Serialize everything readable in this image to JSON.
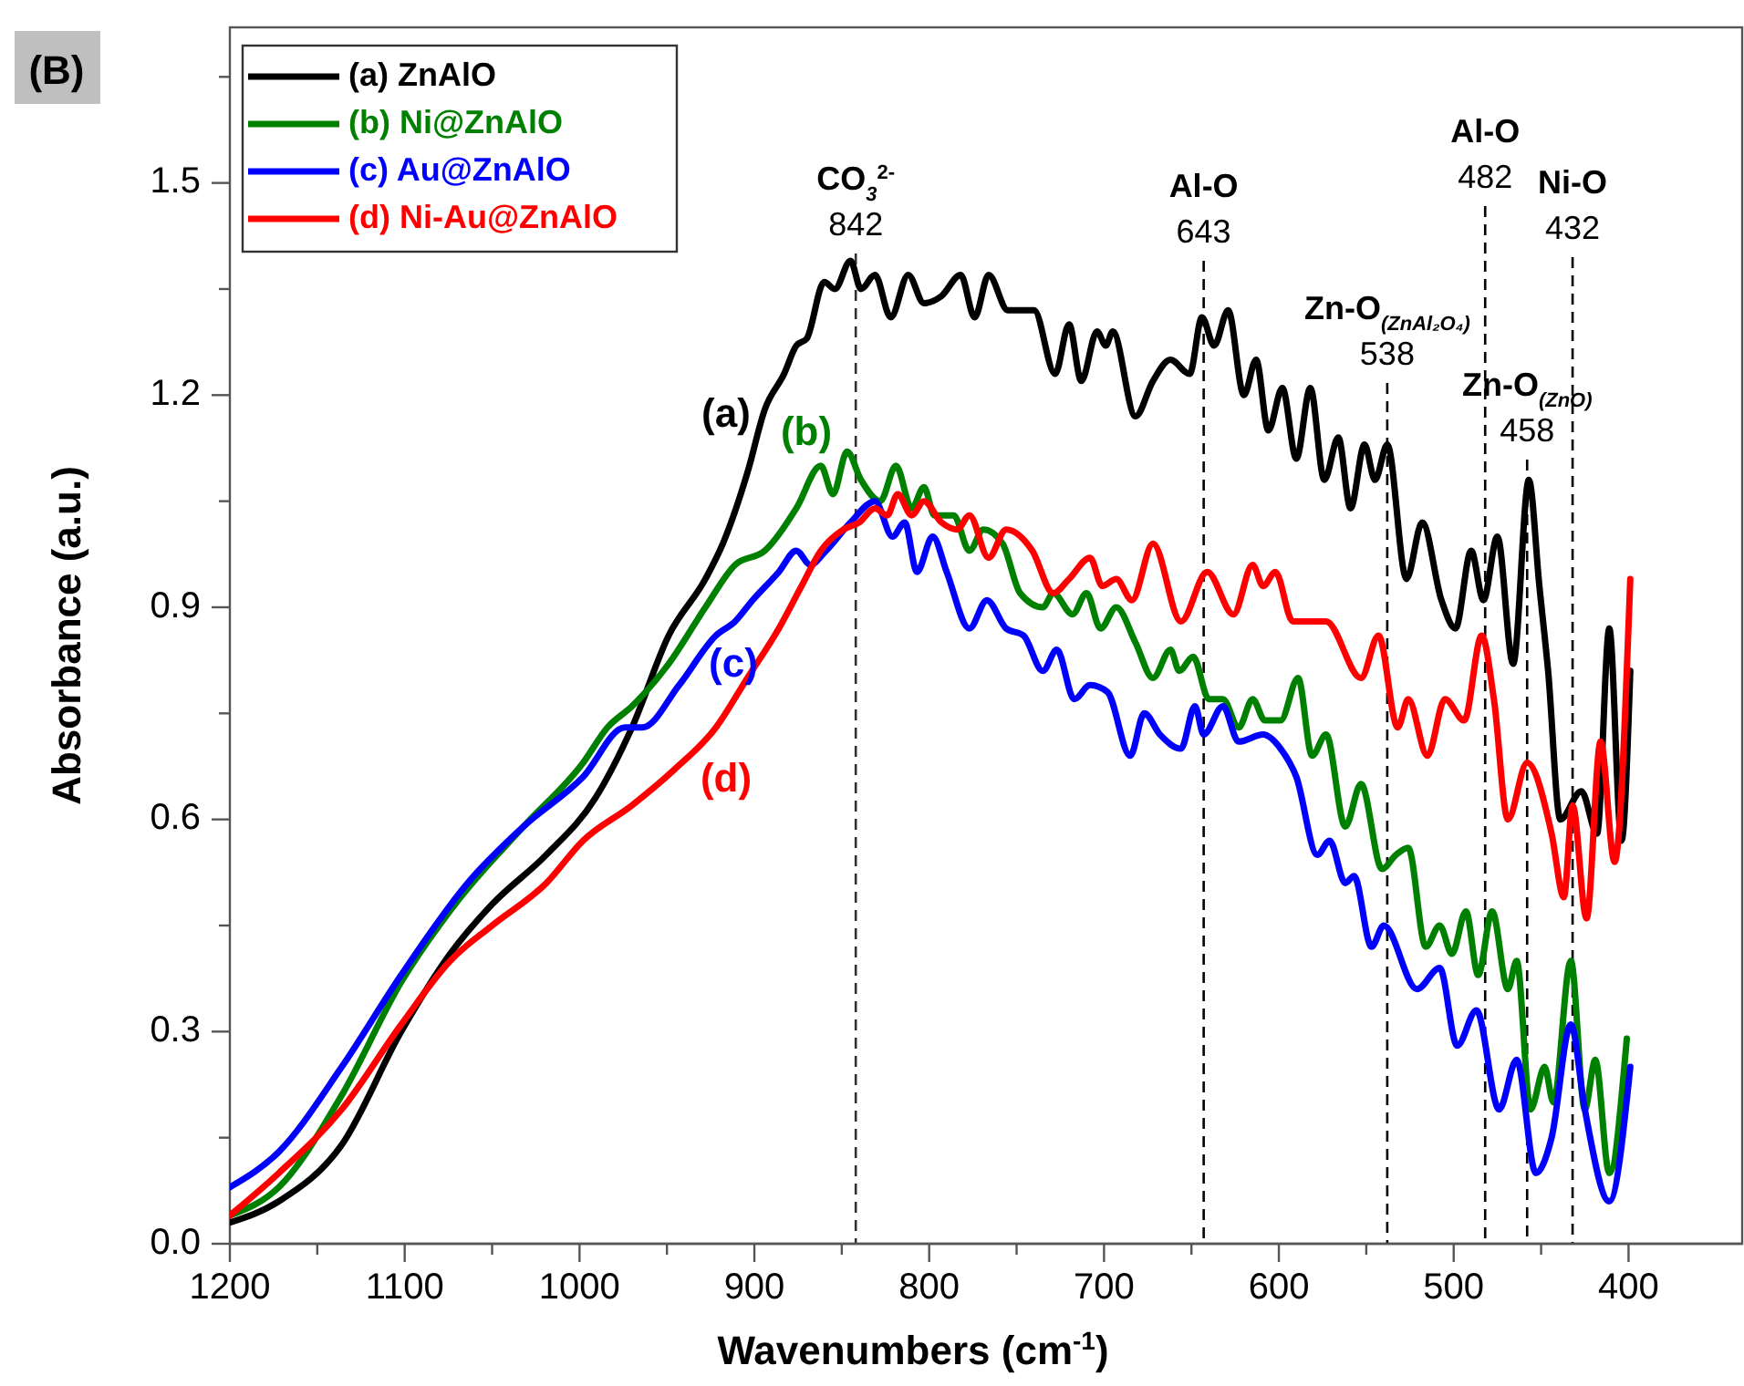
{
  "chart_data": {
    "type": "line",
    "title": "(B)",
    "xlabel": "Wavenumbers (cm$^{-1}$)",
    "ylabel": "Absorbance (a.u.)",
    "xlim": [
      1200,
      335
    ],
    "ylim": [
      0,
      1.72
    ],
    "xticks": [
      1200,
      {
        "value": 1150,
        "label": null
      },
      1100,
      {
        "value": 1050,
        "label": null
      },
      1000,
      {
        "value": 950,
        "label": null
      },
      900,
      {
        "value": 850,
        "label": null
      },
      800,
      {
        "value": 750,
        "label": null
      },
      700,
      {
        "value": 650,
        "label": null
      },
      600,
      {
        "value": 550,
        "label": null
      },
      500,
      {
        "value": 450,
        "label": null
      },
      400
    ],
    "yticks": [
      {
        "value": 0,
        "label": "0.0"
      },
      {
        "value": 0.15,
        "label": null
      },
      0.3,
      {
        "value": 0.45,
        "label": null
      },
      0.6,
      {
        "value": 0.75,
        "label": null
      },
      0.9,
      {
        "value": 1.05,
        "label": null
      },
      1.2,
      {
        "value": 1.35,
        "label": null
      },
      1.5,
      {
        "value": 1.65,
        "label": null
      }
    ],
    "grid": false,
    "legend": "top left",
    "line_style": "solid",
    "series": [
      {
        "name": "(a) ZnAlO",
        "color": "#000000",
        "x": [
          1200,
          1172,
          1136,
          1102,
          1074,
          1050,
          1019,
          991,
          970,
          949,
          928,
          918,
          904,
          894,
          883,
          876,
          870,
          860,
          854,
          845,
          839,
          831,
          822,
          812,
          803,
          793,
          782,
          774,
          766,
          755,
          740,
          728,
          720,
          713,
          704,
          699,
          695,
          682,
          672,
          662,
          651,
          644,
          637,
          629,
          620,
          613,
          606,
          598,
          590,
          582,
          574,
          566,
          559,
          551,
          545,
          538,
          527,
          518,
          507,
          499,
          490,
          483,
          475,
          466,
          457,
          451,
          446,
          439,
          427,
          418,
          411,
          404,
          399
        ],
        "values": [
          0.03,
          0.06,
          0.14,
          0.3,
          0.41,
          0.48,
          0.55,
          0.63,
          0.73,
          0.86,
          0.94,
          0.99,
          1.09,
          1.18,
          1.23,
          1.27,
          1.28,
          1.36,
          1.35,
          1.39,
          1.35,
          1.37,
          1.31,
          1.37,
          1.33,
          1.34,
          1.37,
          1.31,
          1.37,
          1.32,
          1.32,
          1.23,
          1.3,
          1.22,
          1.29,
          1.27,
          1.29,
          1.17,
          1.22,
          1.25,
          1.23,
          1.31,
          1.27,
          1.32,
          1.2,
          1.25,
          1.15,
          1.21,
          1.11,
          1.21,
          1.08,
          1.14,
          1.04,
          1.13,
          1.08,
          1.13,
          0.94,
          1.02,
          0.91,
          0.87,
          0.98,
          0.91,
          1.0,
          0.82,
          1.08,
          0.93,
          0.81,
          0.6,
          0.64,
          0.58,
          0.87,
          0.57,
          0.81
        ]
      },
      {
        "name": "(b) Ni@ZnAlO",
        "color": "#008000",
        "x": [
          1200,
          1172,
          1136,
          1102,
          1068,
          1032,
          998,
          984,
          970,
          949,
          928,
          911,
          894,
          876,
          862,
          855,
          847,
          839,
          828,
          819,
          810,
          803,
          797,
          786,
          777,
          769,
          758,
          748,
          735,
          729,
          718,
          710,
          702,
          693,
          682,
          672,
          662,
          657,
          649,
          640,
          632,
          623,
          615,
          608,
          599,
          589,
          581,
          573,
          562,
          553,
          541,
          533,
          526,
          516,
          508,
          501,
          493,
          486,
          478,
          469,
          464,
          456,
          448,
          443,
          433,
          425,
          419,
          411,
          401
        ],
        "values": [
          0.04,
          0.08,
          0.21,
          0.37,
          0.49,
          0.59,
          0.68,
          0.73,
          0.76,
          0.82,
          0.9,
          0.96,
          0.98,
          1.04,
          1.1,
          1.06,
          1.12,
          1.08,
          1.05,
          1.1,
          1.04,
          1.07,
          1.03,
          1.03,
          0.98,
          1.01,
          0.99,
          0.92,
          0.9,
          0.92,
          0.89,
          0.92,
          0.87,
          0.9,
          0.85,
          0.8,
          0.84,
          0.81,
          0.83,
          0.77,
          0.77,
          0.73,
          0.77,
          0.74,
          0.74,
          0.8,
          0.69,
          0.72,
          0.59,
          0.65,
          0.53,
          0.55,
          0.56,
          0.42,
          0.45,
          0.41,
          0.47,
          0.38,
          0.47,
          0.36,
          0.4,
          0.19,
          0.25,
          0.2,
          0.4,
          0.19,
          0.26,
          0.1,
          0.29
        ]
      },
      {
        "name": "(c) Au@ZnAlO",
        "color": "#0000ff",
        "x": [
          1200,
          1172,
          1136,
          1102,
          1064,
          1032,
          998,
          974,
          964,
          943,
          922,
          911,
          901,
          886,
          876,
          868,
          859,
          845,
          831,
          821,
          814,
          807,
          798,
          790,
          777,
          767,
          756,
          746,
          735,
          727,
          717,
          708,
          698,
          685,
          677,
          668,
          656,
          648,
          643,
          632,
          623,
          609,
          599,
          590,
          578,
          571,
          562,
          557,
          547,
          540,
          521,
          508,
          498,
          487,
          474,
          464,
          453,
          444,
          433,
          425,
          411,
          399
        ],
        "values": [
          0.08,
          0.13,
          0.25,
          0.38,
          0.51,
          0.59,
          0.66,
          0.73,
          0.73,
          0.79,
          0.86,
          0.88,
          0.91,
          0.95,
          0.98,
          0.96,
          0.98,
          1.02,
          1.05,
          1.0,
          1.02,
          0.95,
          1.0,
          0.95,
          0.87,
          0.91,
          0.87,
          0.86,
          0.81,
          0.84,
          0.77,
          0.79,
          0.78,
          0.69,
          0.75,
          0.72,
          0.7,
          0.76,
          0.72,
          0.76,
          0.71,
          0.72,
          0.7,
          0.66,
          0.55,
          0.57,
          0.51,
          0.52,
          0.42,
          0.45,
          0.36,
          0.39,
          0.28,
          0.33,
          0.19,
          0.26,
          0.1,
          0.15,
          0.31,
          0.19,
          0.06,
          0.25
        ]
      },
      {
        "name": "(d) Ni-Au@ZnAlO",
        "color": "#ff0000",
        "x": [
          1200,
          1172,
          1136,
          1102,
          1074,
          1050,
          1019,
          998,
          970,
          946,
          922,
          904,
          886,
          873,
          862,
          849,
          840,
          831,
          824,
          818,
          810,
          803,
          793,
          784,
          777,
          766,
          756,
          741,
          729,
          720,
          708,
          701,
          693,
          684,
          672,
          656,
          641,
          626,
          615,
          609,
          602,
          592,
          573,
          553,
          543,
          532,
          526,
          515,
          505,
          494,
          484,
          477,
          469,
          458,
          444,
          437,
          432,
          424,
          416,
          408,
          399
        ],
        "values": [
          0.04,
          0.1,
          0.19,
          0.31,
          0.4,
          0.45,
          0.51,
          0.57,
          0.62,
          0.67,
          0.73,
          0.8,
          0.87,
          0.93,
          0.98,
          1.01,
          1.02,
          1.04,
          1.03,
          1.06,
          1.03,
          1.05,
          1.02,
          1.01,
          1.03,
          0.97,
          1.01,
          0.98,
          0.92,
          0.94,
          0.97,
          0.93,
          0.94,
          0.91,
          0.99,
          0.88,
          0.95,
          0.89,
          0.96,
          0.93,
          0.95,
          0.88,
          0.88,
          0.8,
          0.86,
          0.73,
          0.77,
          0.69,
          0.77,
          0.74,
          0.86,
          0.77,
          0.6,
          0.68,
          0.58,
          0.49,
          0.62,
          0.46,
          0.71,
          0.54,
          0.94
        ]
      }
    ],
    "ref_lines": [
      {
        "axis": "x",
        "value": 842,
        "label": "CO$_{3}$$^{2-}$\n842",
        "color": "#333333",
        "line_style": "dashed"
      },
      {
        "axis": "x",
        "value": 643,
        "label": "Al-O\n643",
        "color": "#000000",
        "line_style": "dashed"
      },
      {
        "axis": "x",
        "value": 538,
        "label": "Zn-O$_{(ZnAl₂O₄)}$\n538",
        "color": "#000000",
        "line_style": "dashed"
      },
      {
        "axis": "x",
        "value": 482,
        "label": "Al-O\n482",
        "color": "#000000",
        "line_style": "dashed"
      },
      {
        "axis": "x",
        "value": 458,
        "label": "Zn-O$_{(ZnO)}$\n458",
        "color": "#000000",
        "line_style": "dashed"
      },
      {
        "axis": "x",
        "value": 432,
        "label": "Ni-O\n432",
        "color": "#000000",
        "line_style": "dashed"
      }
    ],
    "annotations": [
      "(a)",
      "(b)",
      "(c)",
      "(d)"
    ]
  }
}
